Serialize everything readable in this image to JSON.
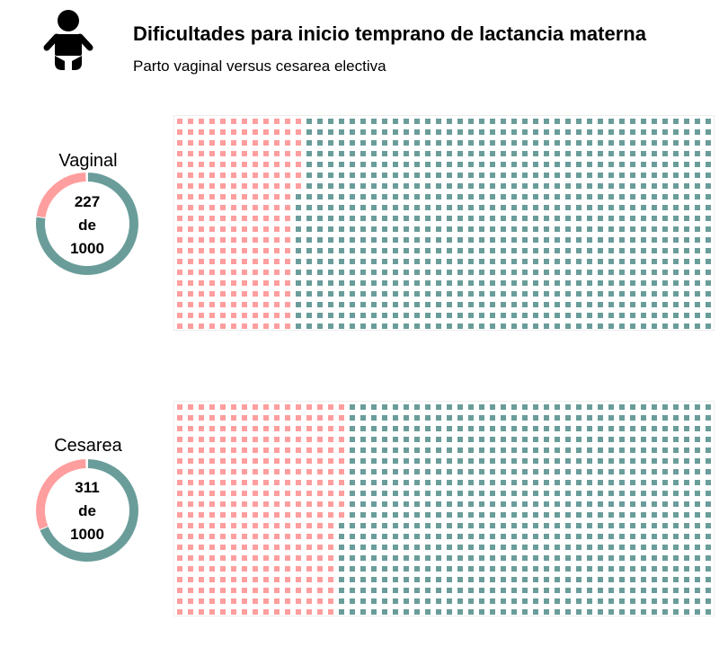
{
  "header": {
    "title": "Dificultades para inicio temprano de lactancia materna",
    "subtitle": "Parto vaginal versus cesarea electiva",
    "icon": "baby-icon"
  },
  "colors": {
    "highlight": "#ff9e9e",
    "rest": "#6a9d9a"
  },
  "chart_data": [
    {
      "type": "waffle",
      "name": "Vaginal",
      "value": 227,
      "total": 1000,
      "value_text": "227",
      "de_text": "de",
      "total_text": "1000"
    },
    {
      "type": "waffle",
      "name": "Cesarea",
      "value": 311,
      "total": 1000,
      "value_text": "311",
      "de_text": "de",
      "total_text": "1000"
    }
  ]
}
